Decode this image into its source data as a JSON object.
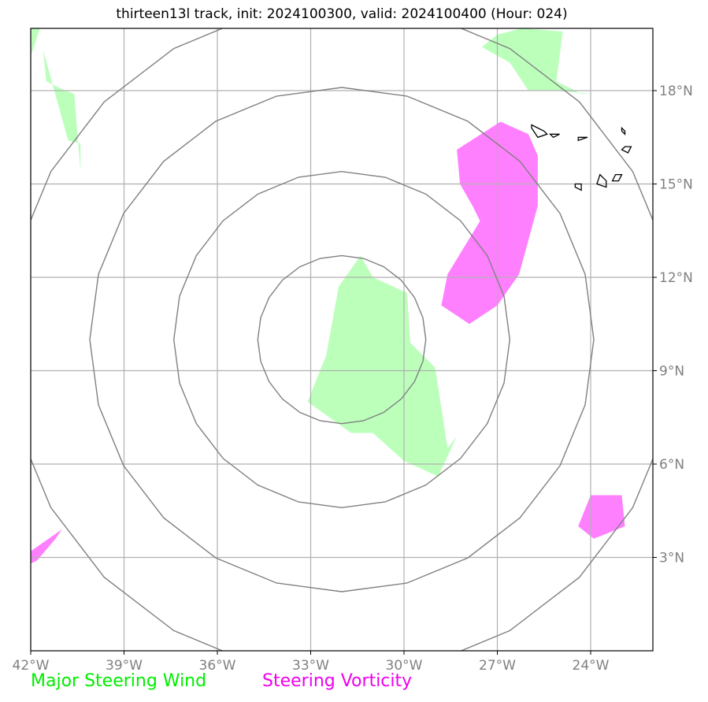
{
  "title": "thirteen13l track, init: 2024100300, valid: 2024100400 (Hour: 024)",
  "map": {
    "lon_range": [
      -42,
      -22
    ],
    "lat_range": [
      0,
      20
    ],
    "lon_ticks": [
      -42,
      -39,
      -36,
      -33,
      -30,
      -27,
      -24
    ],
    "lat_ticks": [
      3,
      6,
      9,
      12,
      15,
      18
    ],
    "lon_tick_labels": [
      "42°W",
      "39°W",
      "36°W",
      "33°W",
      "30°W",
      "27°W",
      "24°W"
    ],
    "lat_tick_labels": [
      "3°N",
      "6°N",
      "9°N",
      "12°N",
      "15°N",
      "18°N"
    ],
    "grid": true,
    "range_rings": {
      "center": [
        -32.0,
        10.0
      ],
      "radii_deg": [
        2.7,
        5.4,
        8.1,
        10.8
      ],
      "color": "#808080"
    },
    "regions": [
      {
        "kind": "wind",
        "color": "#bbffbb",
        "points": [
          [
            -31.0,
            12.0
          ],
          [
            -29.9,
            11.5
          ],
          [
            -29.8,
            9.9
          ],
          [
            -29.0,
            9.1
          ],
          [
            -28.6,
            6.5
          ],
          [
            -28.3,
            6.9
          ],
          [
            -28.9,
            5.6
          ],
          [
            -30.0,
            6.1
          ],
          [
            -31.0,
            7.0
          ],
          [
            -31.7,
            7.0
          ],
          [
            -33.1,
            8.0
          ],
          [
            -32.5,
            9.5
          ],
          [
            -32.1,
            11.7
          ],
          [
            -31.4,
            12.7
          ]
        ]
      },
      {
        "kind": "wind",
        "color": "#bbffbb",
        "points": [
          [
            -41.5,
            18.3
          ],
          [
            -40.9,
            18.0
          ],
          [
            -40.6,
            17.9
          ],
          [
            -40.4,
            15.4
          ],
          [
            -40.4,
            16.3
          ],
          [
            -40.8,
            16.4
          ],
          [
            -41.6,
            19.3
          ]
        ]
      },
      {
        "kind": "wind",
        "color": "#bbffbb",
        "points": [
          [
            -42.0,
            20.0
          ],
          [
            -41.7,
            20.0
          ],
          [
            -42.0,
            19.1
          ]
        ]
      },
      {
        "kind": "wind",
        "color": "#bbffbb",
        "points": [
          [
            -27.5,
            19.4
          ],
          [
            -26.6,
            18.9
          ],
          [
            -26.0,
            18.0
          ],
          [
            -25.1,
            18.0
          ],
          [
            -24.0,
            17.9
          ],
          [
            -24.3,
            17.9
          ],
          [
            -25.1,
            18.3
          ],
          [
            -24.9,
            19.9
          ],
          [
            -26.2,
            20.0
          ],
          [
            -27.0,
            19.8
          ]
        ]
      },
      {
        "kind": "vorticity",
        "color": "#ff80ff",
        "points": [
          [
            -28.3,
            16.1
          ],
          [
            -26.9,
            17.0
          ],
          [
            -26.0,
            16.6
          ],
          [
            -25.7,
            15.9
          ],
          [
            -25.7,
            14.3
          ],
          [
            -26.3,
            12.1
          ],
          [
            -27.0,
            11.1
          ],
          [
            -27.9,
            10.5
          ],
          [
            -28.8,
            11.1
          ],
          [
            -28.6,
            12.1
          ],
          [
            -27.5,
            13.9
          ],
          [
            -27.3,
            13.3
          ],
          [
            -27.8,
            14.3
          ],
          [
            -28.2,
            15.0
          ]
        ]
      },
      {
        "kind": "vorticity",
        "color": "#ff80ff",
        "points": [
          [
            -42.0,
            3.2
          ],
          [
            -41.0,
            3.9
          ],
          [
            -41.2,
            3.6
          ],
          [
            -41.8,
            2.9
          ],
          [
            -42.0,
            2.8
          ]
        ]
      },
      {
        "kind": "vorticity",
        "color": "#ff80ff",
        "points": [
          [
            -24.0,
            5.0
          ],
          [
            -23.0,
            5.0
          ],
          [
            -22.9,
            4.0
          ],
          [
            -23.9,
            3.6
          ],
          [
            -24.4,
            4.0
          ]
        ]
      }
    ],
    "islands": [
      {
        "points": [
          [
            -25.9,
            16.9
          ],
          [
            -25.5,
            16.7
          ],
          [
            -25.4,
            16.6
          ],
          [
            -25.7,
            16.5
          ],
          [
            -25.9,
            16.8
          ]
        ]
      },
      {
        "points": [
          [
            -25.3,
            16.6
          ],
          [
            -25.0,
            16.6
          ],
          [
            -25.2,
            16.5
          ]
        ]
      },
      {
        "points": [
          [
            -24.4,
            16.5
          ],
          [
            -24.1,
            16.5
          ],
          [
            -24.4,
            16.4
          ]
        ]
      },
      {
        "points": [
          [
            -23.0,
            16.8
          ],
          [
            -22.9,
            16.7
          ],
          [
            -22.9,
            16.6
          ],
          [
            -23.0,
            16.7
          ]
        ]
      },
      {
        "points": [
          [
            -22.9,
            16.2
          ],
          [
            -22.7,
            16.2
          ],
          [
            -22.8,
            16.0
          ],
          [
            -23.0,
            16.1
          ]
        ]
      },
      {
        "points": [
          [
            -24.5,
            15.0
          ],
          [
            -24.3,
            15.0
          ],
          [
            -24.3,
            14.8
          ],
          [
            -24.5,
            14.9
          ]
        ]
      },
      {
        "points": [
          [
            -23.7,
            15.3
          ],
          [
            -23.5,
            15.1
          ],
          [
            -23.5,
            14.9
          ],
          [
            -23.8,
            15.0
          ]
        ]
      },
      {
        "points": [
          [
            -23.2,
            15.3
          ],
          [
            -23.0,
            15.3
          ],
          [
            -23.1,
            15.1
          ],
          [
            -23.3,
            15.1
          ]
        ]
      }
    ]
  },
  "legend": {
    "wind_label": "Major Steering Wind",
    "wind_color": "#00ee00",
    "vorticity_label": "Steering Vorticity",
    "vorticity_color": "#ee00ee"
  }
}
